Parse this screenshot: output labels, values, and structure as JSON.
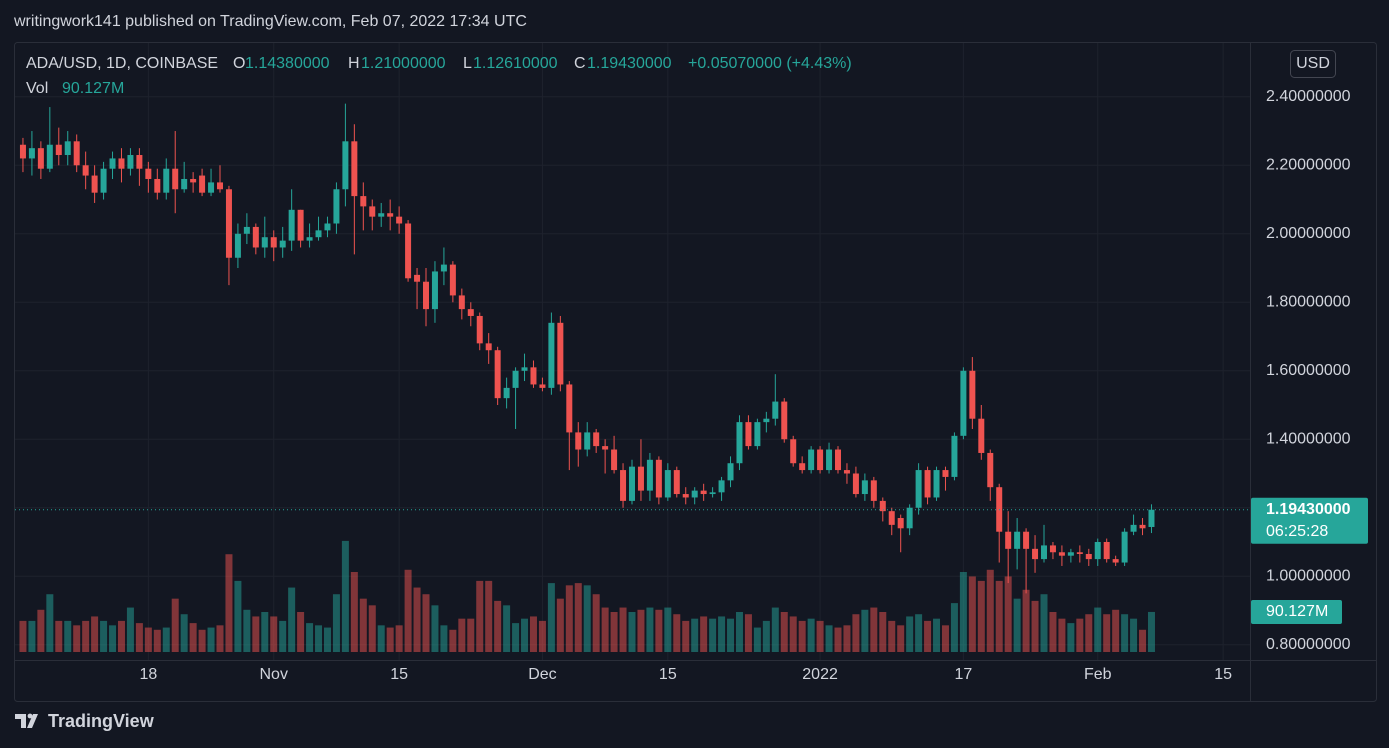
{
  "chart_data": {
    "type": "candlestick",
    "title": "writingwork141 published on TradingView.com, Feb 07, 2022 17:34 UTC",
    "symbol": "ADA/USD, 1D, COINBASE",
    "ohlc_legend": [
      {
        "key": "O",
        "value": "1.14380000"
      },
      {
        "key": "H",
        "value": "1.21000000"
      },
      {
        "key": "L",
        "value": "1.12610000"
      },
      {
        "key": "C",
        "value": "1.19430000"
      }
    ],
    "change": "+0.05070000 (+4.43%)",
    "volume_title": "Vol",
    "volume_legend": "90.127M",
    "currency": "USD",
    "last_price_label": "1.19430000",
    "countdown": "06:25:28",
    "volume_last_label": "90.127M",
    "brand": "TradingView",
    "up_color": "#26a69a",
    "down_color": "#ef5350",
    "grid": true,
    "x": [
      "2021-10-04",
      "2021-10-05",
      "2021-10-06",
      "2021-10-07",
      "2021-10-08",
      "2021-10-09",
      "2021-10-10",
      "2021-10-11",
      "2021-10-12",
      "2021-10-13",
      "2021-10-14",
      "2021-10-15",
      "2021-10-16",
      "2021-10-17",
      "2021-10-18",
      "2021-10-19",
      "2021-10-20",
      "2021-10-21",
      "2021-10-22",
      "2021-10-23",
      "2021-10-24",
      "2021-10-25",
      "2021-10-26",
      "2021-10-27",
      "2021-10-28",
      "2021-10-29",
      "2021-10-30",
      "2021-10-31",
      "2021-11-01",
      "2021-11-02",
      "2021-11-03",
      "2021-11-04",
      "2021-11-05",
      "2021-11-06",
      "2021-11-07",
      "2021-11-08",
      "2021-11-09",
      "2021-11-10",
      "2021-11-11",
      "2021-11-12",
      "2021-11-13",
      "2021-11-14",
      "2021-11-15",
      "2021-11-16",
      "2021-11-17",
      "2021-11-18",
      "2021-11-19",
      "2021-11-20",
      "2021-11-21",
      "2021-11-22",
      "2021-11-23",
      "2021-11-24",
      "2021-11-25",
      "2021-11-26",
      "2021-11-27",
      "2021-11-28",
      "2021-11-29",
      "2021-11-30",
      "2021-12-01",
      "2021-12-02",
      "2021-12-03",
      "2021-12-04",
      "2021-12-05",
      "2021-12-06",
      "2021-12-07",
      "2021-12-08",
      "2021-12-09",
      "2021-12-10",
      "2021-12-11",
      "2021-12-12",
      "2021-12-13",
      "2021-12-14",
      "2021-12-15",
      "2021-12-16",
      "2021-12-17",
      "2021-12-18",
      "2021-12-19",
      "2021-12-20",
      "2021-12-21",
      "2021-12-22",
      "2021-12-23",
      "2021-12-24",
      "2021-12-25",
      "2021-12-26",
      "2021-12-27",
      "2021-12-28",
      "2021-12-29",
      "2021-12-30",
      "2021-12-31",
      "2022-01-01",
      "2022-01-02",
      "2022-01-03",
      "2022-01-04",
      "2022-01-05",
      "2022-01-06",
      "2022-01-07",
      "2022-01-08",
      "2022-01-09",
      "2022-01-10",
      "2022-01-11",
      "2022-01-12",
      "2022-01-13",
      "2022-01-14",
      "2022-01-15",
      "2022-01-16",
      "2022-01-17",
      "2022-01-18",
      "2022-01-19",
      "2022-01-20",
      "2022-01-21",
      "2022-01-22",
      "2022-01-23",
      "2022-01-24",
      "2022-01-25",
      "2022-01-26",
      "2022-01-27",
      "2022-01-28",
      "2022-01-29",
      "2022-01-30",
      "2022-01-31",
      "2022-02-01",
      "2022-02-02",
      "2022-02-03",
      "2022-02-04",
      "2022-02-05",
      "2022-02-06",
      "2022-02-07"
    ],
    "open": [
      2.26,
      2.22,
      2.25,
      2.19,
      2.26,
      2.23,
      2.27,
      2.2,
      2.17,
      2.12,
      2.19,
      2.22,
      2.19,
      2.23,
      2.19,
      2.16,
      2.12,
      2.19,
      2.13,
      2.16,
      2.17,
      2.12,
      2.15,
      2.13,
      1.93,
      2.0,
      2.02,
      1.96,
      1.99,
      1.96,
      1.98,
      2.07,
      1.98,
      1.99,
      2.01,
      2.03,
      2.13,
      2.27,
      2.11,
      2.08,
      2.05,
      2.06,
      2.05,
      2.03,
      1.88,
      1.86,
      1.78,
      1.89,
      1.91,
      1.82,
      1.78,
      1.76,
      1.68,
      1.66,
      1.52,
      1.55,
      1.6,
      1.61,
      1.56,
      1.55,
      1.74,
      1.56,
      1.42,
      1.37,
      1.42,
      1.38,
      1.37,
      1.31,
      1.22,
      1.32,
      1.25,
      1.34,
      1.23,
      1.31,
      1.24,
      1.23,
      1.25,
      1.24,
      1.245,
      1.28,
      1.33,
      1.45,
      1.38,
      1.45,
      1.46,
      1.51,
      1.4,
      1.33,
      1.31,
      1.37,
      1.31,
      1.37,
      1.31,
      1.3,
      1.24,
      1.28,
      1.22,
      1.19,
      1.17,
      1.14,
      1.2,
      1.31,
      1.23,
      1.31,
      1.29,
      1.41,
      1.6,
      1.46,
      1.36,
      1.26,
      1.13,
      1.08,
      1.13,
      1.08,
      1.05,
      1.09,
      1.07,
      1.06,
      1.07,
      1.065,
      1.05,
      1.1,
      1.05,
      1.04,
      1.13,
      1.15,
      1.1438
    ],
    "high": [
      2.28,
      2.3,
      2.27,
      2.37,
      2.31,
      2.3,
      2.29,
      2.24,
      2.2,
      2.21,
      2.24,
      2.25,
      2.25,
      2.25,
      2.21,
      2.19,
      2.22,
      2.3,
      2.21,
      2.18,
      2.19,
      2.19,
      2.2,
      2.14,
      2.03,
      2.06,
      2.03,
      2.05,
      2.01,
      2.02,
      2.13,
      2.07,
      2.03,
      2.05,
      2.05,
      2.15,
      2.38,
      2.32,
      2.15,
      2.1,
      2.09,
      2.1,
      2.08,
      2.04,
      1.9,
      1.9,
      1.92,
      1.96,
      1.92,
      1.84,
      1.8,
      1.77,
      1.71,
      1.67,
      1.58,
      1.61,
      1.65,
      1.63,
      1.58,
      1.77,
      1.76,
      1.57,
      1.45,
      1.45,
      1.43,
      1.4,
      1.41,
      1.33,
      1.34,
      1.4,
      1.36,
      1.35,
      1.33,
      1.32,
      1.26,
      1.26,
      1.27,
      1.26,
      1.29,
      1.35,
      1.47,
      1.47,
      1.46,
      1.48,
      1.59,
      1.52,
      1.41,
      1.35,
      1.38,
      1.38,
      1.39,
      1.38,
      1.33,
      1.32,
      1.3,
      1.29,
      1.23,
      1.2,
      1.18,
      1.21,
      1.33,
      1.32,
      1.32,
      1.32,
      1.42,
      1.61,
      1.64,
      1.5,
      1.37,
      1.27,
      1.19,
      1.17,
      1.14,
      1.12,
      1.15,
      1.1,
      1.09,
      1.08,
      1.09,
      1.08,
      1.11,
      1.11,
      1.06,
      1.14,
      1.18,
      1.17,
      1.21
    ],
    "low": [
      2.18,
      2.17,
      2.16,
      2.18,
      2.2,
      2.2,
      2.18,
      2.13,
      2.09,
      2.1,
      2.16,
      2.15,
      2.17,
      2.14,
      2.12,
      2.1,
      2.1,
      2.06,
      2.12,
      2.12,
      2.11,
      2.11,
      2.12,
      1.85,
      1.9,
      1.97,
      1.94,
      1.93,
      1.92,
      1.93,
      1.95,
      1.96,
      1.96,
      1.98,
      1.99,
      2.0,
      2.08,
      1.94,
      2.01,
      2.01,
      2.02,
      2.01,
      2.0,
      1.86,
      1.78,
      1.73,
      1.74,
      1.85,
      1.8,
      1.75,
      1.73,
      1.66,
      1.62,
      1.5,
      1.49,
      1.43,
      1.57,
      1.55,
      1.54,
      1.53,
      1.54,
      1.31,
      1.32,
      1.35,
      1.36,
      1.3,
      1.3,
      1.2,
      1.21,
      1.22,
      1.22,
      1.21,
      1.22,
      1.23,
      1.21,
      1.21,
      1.22,
      1.23,
      1.22,
      1.26,
      1.31,
      1.37,
      1.37,
      1.42,
      1.44,
      1.39,
      1.32,
      1.3,
      1.3,
      1.3,
      1.3,
      1.3,
      1.27,
      1.23,
      1.22,
      1.2,
      1.16,
      1.12,
      1.07,
      1.12,
      1.18,
      1.21,
      1.22,
      1.25,
      1.28,
      1.4,
      1.43,
      1.34,
      1.22,
      1.04,
      0.98,
      1.02,
      0.95,
      1.01,
      1.04,
      1.05,
      1.03,
      1.04,
      1.04,
      1.03,
      1.03,
      1.04,
      1.03,
      1.03,
      1.12,
      1.12,
      1.1261
    ],
    "close": [
      2.22,
      2.25,
      2.19,
      2.26,
      2.23,
      2.27,
      2.2,
      2.17,
      2.12,
      2.19,
      2.22,
      2.19,
      2.23,
      2.19,
      2.16,
      2.12,
      2.19,
      2.13,
      2.16,
      2.15,
      2.12,
      2.15,
      2.13,
      1.93,
      2.0,
      2.02,
      1.96,
      1.99,
      1.96,
      1.98,
      2.07,
      1.98,
      1.99,
      2.01,
      2.03,
      2.13,
      2.27,
      2.11,
      2.08,
      2.05,
      2.06,
      2.05,
      2.03,
      1.87,
      1.86,
      1.78,
      1.89,
      1.91,
      1.82,
      1.78,
      1.76,
      1.68,
      1.66,
      1.52,
      1.55,
      1.6,
      1.61,
      1.56,
      1.55,
      1.74,
      1.56,
      1.42,
      1.37,
      1.42,
      1.38,
      1.37,
      1.31,
      1.22,
      1.32,
      1.25,
      1.34,
      1.23,
      1.31,
      1.24,
      1.23,
      1.25,
      1.24,
      1.245,
      1.28,
      1.33,
      1.45,
      1.38,
      1.45,
      1.46,
      1.51,
      1.4,
      1.33,
      1.31,
      1.37,
      1.31,
      1.37,
      1.31,
      1.3,
      1.24,
      1.28,
      1.22,
      1.19,
      1.15,
      1.14,
      1.2,
      1.31,
      1.23,
      1.31,
      1.29,
      1.41,
      1.6,
      1.46,
      1.36,
      1.26,
      1.13,
      1.08,
      1.13,
      1.08,
      1.05,
      1.09,
      1.07,
      1.06,
      1.07,
      1.065,
      1.05,
      1.1,
      1.05,
      1.04,
      1.13,
      1.15,
      1.14,
      1.1943
    ],
    "volume": [
      70,
      70,
      95,
      130,
      70,
      70,
      60,
      70,
      80,
      70,
      60,
      70,
      100,
      65,
      55,
      50,
      55,
      120,
      85,
      65,
      50,
      55,
      60,
      220,
      160,
      95,
      80,
      90,
      80,
      70,
      145,
      90,
      65,
      60,
      55,
      130,
      250,
      180,
      120,
      105,
      60,
      55,
      60,
      185,
      145,
      130,
      105,
      60,
      50,
      75,
      75,
      160,
      160,
      115,
      105,
      65,
      75,
      80,
      70,
      155,
      120,
      150,
      155,
      150,
      130,
      100,
      90,
      100,
      90,
      95,
      100,
      95,
      100,
      85,
      70,
      75,
      80,
      75,
      80,
      75,
      90,
      85,
      55,
      70,
      100,
      90,
      80,
      70,
      75,
      70,
      60,
      55,
      60,
      85,
      95,
      100,
      90,
      70,
      60,
      80,
      85,
      70,
      75,
      60,
      110,
      180,
      170,
      160,
      185,
      160,
      170,
      120,
      140,
      115,
      130,
      90,
      75,
      65,
      75,
      85,
      100,
      85,
      95,
      85,
      75,
      50,
      90.127
    ],
    "volume_lim": [
      0,
      360
    ],
    "xlim": [
      "2021-10-03",
      "2022-02-18"
    ],
    "xticks": [
      {
        "value": "2021-10-18",
        "label": "18"
      },
      {
        "value": "2021-11-01",
        "label": "Nov"
      },
      {
        "value": "2021-11-15",
        "label": "15"
      },
      {
        "value": "2021-12-01",
        "label": "Dec"
      },
      {
        "value": "2021-12-15",
        "label": "15"
      },
      {
        "value": "2022-01-01",
        "label": "2022"
      },
      {
        "value": "2022-01-17",
        "label": "17"
      },
      {
        "value": "2022-02-01",
        "label": "Feb"
      },
      {
        "value": "2022-02-15",
        "label": "15"
      }
    ],
    "ylim": [
      0.77,
      2.56
    ],
    "yticks": [
      {
        "value": 0.8,
        "label": "0.80000000"
      },
      {
        "value": 1.0,
        "label": "1.00000000"
      },
      {
        "value": 1.2,
        "label": "1.20000000"
      },
      {
        "value": 1.4,
        "label": "1.40000000"
      },
      {
        "value": 1.6,
        "label": "1.60000000"
      },
      {
        "value": 1.8,
        "label": "1.80000000"
      },
      {
        "value": 2.0,
        "label": "2.00000000"
      },
      {
        "value": 2.2,
        "label": "2.20000000"
      },
      {
        "value": 2.4,
        "label": "2.40000000"
      }
    ]
  }
}
